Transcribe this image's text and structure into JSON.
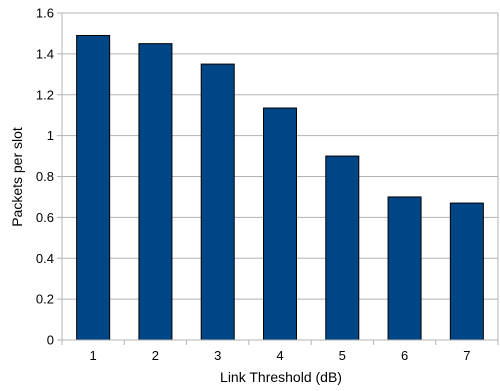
{
  "chart_data": {
    "type": "bar",
    "title": "",
    "xlabel": "Link Threshold (dB)",
    "ylabel": "Packets per slot",
    "categories": [
      "1",
      "2",
      "3",
      "4",
      "5",
      "6",
      "7"
    ],
    "values": [
      1.49,
      1.45,
      1.35,
      1.135,
      0.9,
      0.7,
      0.67
    ],
    "ylim": [
      0,
      1.6
    ],
    "yticks": [
      "0",
      "0.2",
      "0.4",
      "0.6",
      "0.8",
      "1",
      "1.2",
      "1.4",
      "1.6"
    ],
    "grid": "horizontal",
    "legend": "none",
    "colors": {
      "bar": "#004586",
      "bar_edge": "#000000",
      "grid": "#b3b3b3",
      "axis": "#b3b3b3"
    }
  }
}
